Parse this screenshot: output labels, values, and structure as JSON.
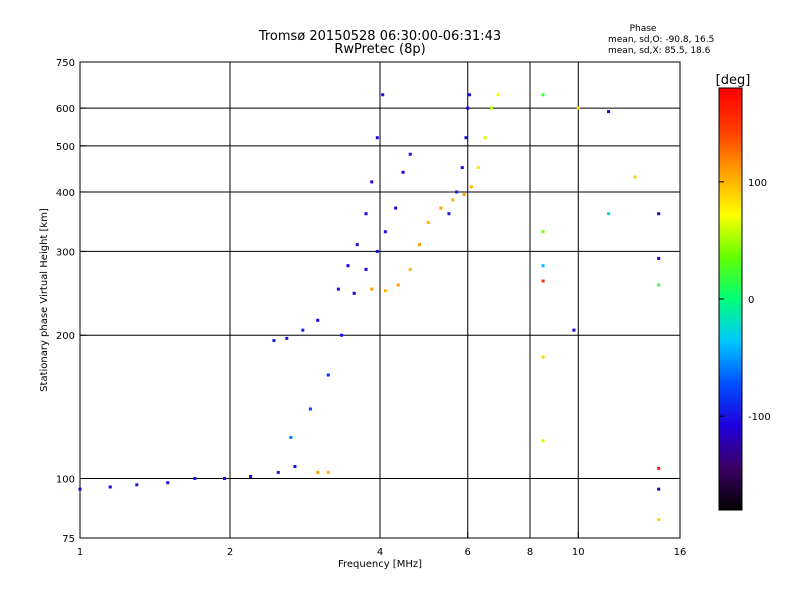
{
  "chart_data": {
    "type": "scatter",
    "title": "Tromsø 20150528 06:30:00-06:31:43",
    "subtitle": "RwPretec (8p)",
    "xlabel": "Frequency [MHz]",
    "ylabel": "Stationary phase Virtual Height [km]",
    "x_scale": "log",
    "y_scale": "log",
    "xlim": [
      1,
      16
    ],
    "ylim": [
      75,
      750
    ],
    "x_ticks": [
      1,
      2,
      4,
      6,
      8,
      10,
      16
    ],
    "y_ticks": [
      75,
      100,
      200,
      300,
      400,
      500,
      600,
      750
    ],
    "grid_x": [
      2,
      4,
      6,
      8,
      10
    ],
    "grid_y": [
      100,
      200,
      300,
      400,
      500,
      600
    ],
    "grid": true,
    "stats": {
      "heading": "Phase",
      "line1": "mean, sd,O:  -90.8, 16.5",
      "line2": "mean, sd,X:  85.5, 18.6"
    },
    "colorbar": {
      "label": "[deg]",
      "range": [
        -180,
        180
      ],
      "ticks": [
        -100,
        0,
        100
      ],
      "colors": [
        "#000000",
        "#3c0064",
        "#1e00dc",
        "#0050ff",
        "#00c8ff",
        "#00ff78",
        "#64ff00",
        "#ffff00",
        "#ffa000",
        "#ff3c00",
        "#ff0000"
      ]
    },
    "series": [
      {
        "points": [
          [
            1.0,
            95,
            -105
          ],
          [
            1.15,
            96,
            -110
          ],
          [
            1.3,
            97,
            -100
          ],
          [
            1.5,
            98,
            -110
          ],
          [
            1.7,
            100,
            -95
          ],
          [
            1.95,
            100,
            -100
          ],
          [
            2.2,
            101,
            -105
          ],
          [
            2.5,
            103,
            -95
          ],
          [
            2.7,
            106,
            -100
          ]
        ]
      },
      {
        "points": [
          [
            2.45,
            195,
            -95
          ],
          [
            2.6,
            197,
            -100
          ],
          [
            2.8,
            205,
            -95
          ],
          [
            3.0,
            215,
            -105
          ],
          [
            2.65,
            122,
            -60
          ],
          [
            2.9,
            140,
            -80
          ],
          [
            3.15,
            165,
            -90
          ],
          [
            3.35,
            200,
            -100
          ],
          [
            3.55,
            245,
            -110
          ],
          [
            3.75,
            275,
            -105
          ],
          [
            3.95,
            300,
            -100
          ],
          [
            4.1,
            330,
            -105
          ],
          [
            4.3,
            370,
            -105
          ],
          [
            4.45,
            440,
            -110
          ],
          [
            4.6,
            480,
            -100
          ]
        ]
      },
      {
        "points": [
          [
            3.3,
            250,
            -105
          ],
          [
            3.45,
            280,
            -110
          ],
          [
            3.6,
            310,
            -100
          ],
          [
            3.75,
            360,
            -105
          ],
          [
            3.85,
            420,
            -110
          ],
          [
            3.95,
            520,
            -105
          ],
          [
            4.05,
            640,
            -100
          ]
        ]
      },
      {
        "points": [
          [
            3.0,
            103,
            110
          ],
          [
            3.15,
            103,
            100
          ],
          [
            3.85,
            250,
            110
          ],
          [
            4.1,
            248,
            100
          ],
          [
            4.35,
            255,
            110
          ],
          [
            4.6,
            275,
            100
          ],
          [
            4.8,
            310,
            110
          ],
          [
            5.0,
            345,
            100
          ],
          [
            5.3,
            370,
            110
          ],
          [
            5.6,
            385,
            100
          ],
          [
            5.9,
            395,
            110
          ],
          [
            6.1,
            410,
            100
          ],
          [
            6.3,
            450,
            80
          ],
          [
            6.5,
            520,
            60
          ],
          [
            6.7,
            600,
            50
          ],
          [
            6.9,
            640,
            70
          ]
        ]
      },
      {
        "points": [
          [
            5.5,
            360,
            -100
          ],
          [
            5.7,
            400,
            -95
          ],
          [
            5.85,
            450,
            -105
          ],
          [
            5.95,
            520,
            -100
          ],
          [
            6.0,
            600,
            -110
          ],
          [
            6.05,
            640,
            -100
          ]
        ]
      },
      {
        "points": [
          [
            8.5,
            330,
            40
          ],
          [
            8.5,
            280,
            -40
          ],
          [
            8.5,
            260,
            150
          ],
          [
            8.5,
            180,
            90
          ],
          [
            8.5,
            120,
            60
          ],
          [
            8.5,
            640,
            20
          ],
          [
            10.0,
            600,
            80
          ],
          [
            11.5,
            590,
            -110
          ],
          [
            13.0,
            430,
            90
          ],
          [
            14.5,
            360,
            -120
          ],
          [
            14.5,
            290,
            -110
          ],
          [
            14.5,
            255,
            20
          ],
          [
            14.5,
            105,
            160
          ],
          [
            14.5,
            95,
            -120
          ],
          [
            14.5,
            82,
            90
          ],
          [
            11.5,
            360,
            -20
          ],
          [
            9.8,
            205,
            -110
          ]
        ]
      }
    ]
  }
}
